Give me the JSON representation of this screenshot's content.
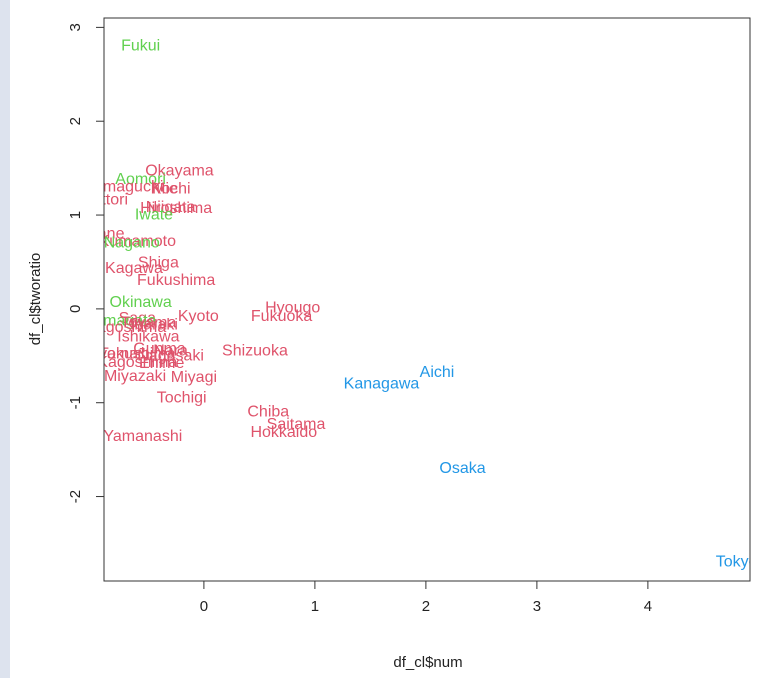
{
  "chart_data": {
    "type": "scatter",
    "title": "",
    "xlabel": "df_cl$num",
    "ylabel": "df_cl$tworatio",
    "xlim": [
      -0.9,
      4.92
    ],
    "ylim": [
      -2.9,
      3.1
    ],
    "xticks": [
      0,
      1,
      2,
      3,
      4
    ],
    "yticks": [
      -2,
      -1,
      0,
      1,
      2,
      3
    ],
    "grid": false,
    "colors": {
      "green": "#61d04f",
      "red": "#df536b",
      "blue": "#2297e6"
    },
    "points": [
      {
        "label": "Fukui",
        "x": -0.57,
        "y": 2.8,
        "color": "green"
      },
      {
        "label": "Okayama",
        "x": -0.22,
        "y": 1.47,
        "color": "red"
      },
      {
        "label": "Aomori",
        "x": -0.57,
        "y": 1.38,
        "color": "green"
      },
      {
        "label": "Yamaguchi",
        "x": -0.72,
        "y": 1.3,
        "color": "red"
      },
      {
        "label": "Mie",
        "x": -0.35,
        "y": 1.28,
        "color": "red"
      },
      {
        "label": "Kochi",
        "x": -0.3,
        "y": 1.28,
        "color": "red"
      },
      {
        "label": "Tottori",
        "x": -0.88,
        "y": 1.16,
        "color": "red"
      },
      {
        "label": "Niigata",
        "x": -0.3,
        "y": 1.08,
        "color": "red"
      },
      {
        "label": "Hiroshima",
        "x": -0.25,
        "y": 1.07,
        "color": "red"
      },
      {
        "label": "Iwate",
        "x": -0.45,
        "y": 1.0,
        "color": "green"
      },
      {
        "label": "Shimane",
        "x": -1.0,
        "y": 0.8,
        "color": "red"
      },
      {
        "label": "Kumamoto",
        "x": -0.6,
        "y": 0.72,
        "color": "red"
      },
      {
        "label": "Nagano",
        "x": -0.65,
        "y": 0.7,
        "color": "green"
      },
      {
        "label": "Shiga",
        "x": -0.41,
        "y": 0.49,
        "color": "red"
      },
      {
        "label": "Kagawa",
        "x": -0.63,
        "y": 0.43,
        "color": "red"
      },
      {
        "label": "Fukushima",
        "x": -0.25,
        "y": 0.3,
        "color": "red"
      },
      {
        "label": "Okinawa",
        "x": -0.57,
        "y": 0.07,
        "color": "green"
      },
      {
        "label": "Hyougo",
        "x": 0.8,
        "y": 0.01,
        "color": "red"
      },
      {
        "label": "Kyoto",
        "x": -0.05,
        "y": -0.08,
        "color": "red"
      },
      {
        "label": "Saga",
        "x": -0.6,
        "y": -0.1,
        "color": "red"
      },
      {
        "label": "Fukuoka",
        "x": 0.7,
        "y": -0.08,
        "color": "red"
      },
      {
        "label": "Yamagata",
        "x": -0.75,
        "y": -0.13,
        "color": "green"
      },
      {
        "label": "Toyama",
        "x": -0.5,
        "y": -0.15,
        "color": "red"
      },
      {
        "label": "Ibaraki",
        "x": -0.45,
        "y": -0.17,
        "color": "red"
      },
      {
        "label": "Kagoshima",
        "x": -0.7,
        "y": -0.2,
        "color": "red"
      },
      {
        "label": "Ishikawa",
        "x": -0.5,
        "y": -0.3,
        "color": "red"
      },
      {
        "label": "Shizuoka",
        "x": 0.46,
        "y": -0.45,
        "color": "red"
      },
      {
        "label": "Gunma",
        "x": -0.4,
        "y": -0.43,
        "color": "red"
      },
      {
        "label": "Nara",
        "x": -0.3,
        "y": -0.45,
        "color": "red"
      },
      {
        "label": "Wakayama",
        "x": -0.95,
        "y": -0.48,
        "color": "red"
      },
      {
        "label": "Tokushima",
        "x": -0.6,
        "y": -0.48,
        "color": "red"
      },
      {
        "label": "Nagasaki",
        "x": -0.3,
        "y": -0.5,
        "color": "red"
      },
      {
        "label": "Kagoshima",
        "x": -0.6,
        "y": -0.57,
        "color": "red"
      },
      {
        "label": "Ehime",
        "x": -0.38,
        "y": -0.58,
        "color": "red"
      },
      {
        "label": "Miyazaki",
        "x": -0.62,
        "y": -0.72,
        "color": "red"
      },
      {
        "label": "Miyagi",
        "x": -0.09,
        "y": -0.73,
        "color": "red"
      },
      {
        "label": "Aichi",
        "x": 2.1,
        "y": -0.68,
        "color": "blue"
      },
      {
        "label": "Kanagawa",
        "x": 1.6,
        "y": -0.8,
        "color": "blue"
      },
      {
        "label": "Tochigi",
        "x": -0.2,
        "y": -0.95,
        "color": "red"
      },
      {
        "label": "Chiba",
        "x": 0.58,
        "y": -1.1,
        "color": "red"
      },
      {
        "label": "Saitama",
        "x": 0.83,
        "y": -1.23,
        "color": "red"
      },
      {
        "label": "Hokkaido",
        "x": 0.72,
        "y": -1.32,
        "color": "red"
      },
      {
        "label": "Yamanashi",
        "x": -0.55,
        "y": -1.36,
        "color": "red"
      },
      {
        "label": "Osaka",
        "x": 2.33,
        "y": -1.7,
        "color": "blue"
      },
      {
        "label": "Tokyo",
        "x": 4.8,
        "y": -2.7,
        "color": "blue"
      }
    ]
  }
}
